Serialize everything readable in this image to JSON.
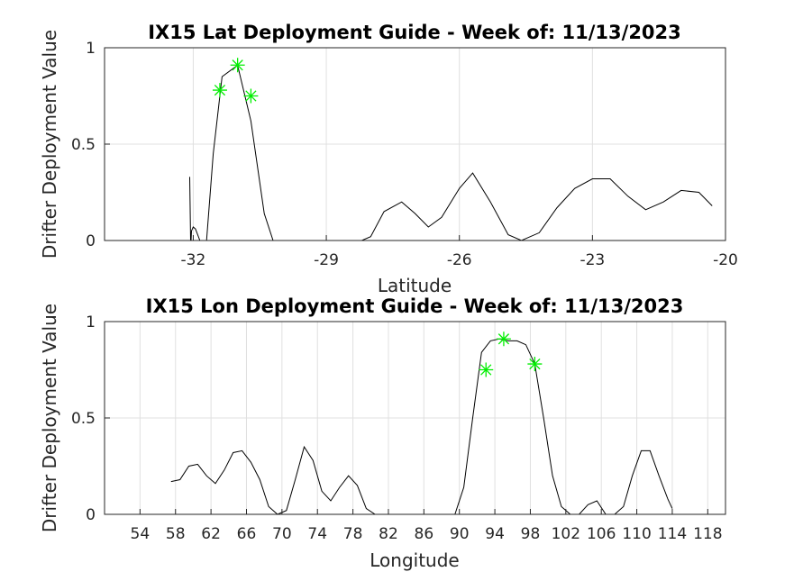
{
  "chart_data": [
    {
      "type": "line",
      "title": "IX15 Lat Deployment Guide - Week of: 11/13/2023",
      "xlabel": "Latitude",
      "ylabel": "Drifter Deployment Value",
      "xlim": [
        -34,
        -20
      ],
      "ylim": [
        0,
        1
      ],
      "xticks": [
        -32,
        -29,
        -26,
        -23,
        -20
      ],
      "yticks": [
        0,
        0.5,
        1
      ],
      "xtick_labels": [
        "-32",
        "-29",
        "-26",
        "-23",
        "-20"
      ],
      "ytick_labels": [
        "0",
        "0.5",
        "1"
      ],
      "grid": true,
      "series": [
        {
          "color": "#000000",
          "x": [
            -32.08,
            -32.06,
            -32.05,
            -32.04,
            -32.0,
            -31.95,
            -31.85,
            -31.7,
            -31.55,
            -31.35,
            -31.0,
            -30.7,
            -30.4,
            -30.2,
            -29.8,
            -29.0,
            -28.2,
            -28.0,
            -27.7,
            -27.3,
            -27.0,
            -26.7,
            -26.4,
            -26.0,
            -25.7,
            -25.3,
            -24.9,
            -24.6,
            -24.2,
            -23.8,
            -23.4,
            -23.0,
            -22.6,
            -22.2,
            -21.8,
            -21.4,
            -21.0,
            -20.6,
            -20.3
          ],
          "y": [
            0.33,
            0.0,
            0.0,
            0.05,
            0.07,
            0.06,
            0.0,
            0.0,
            0.45,
            0.85,
            0.91,
            0.62,
            0.14,
            0.0,
            0.0,
            0.0,
            0.0,
            0.02,
            0.15,
            0.2,
            0.14,
            0.07,
            0.12,
            0.27,
            0.35,
            0.2,
            0.03,
            0.0,
            0.04,
            0.17,
            0.27,
            0.32,
            0.32,
            0.23,
            0.16,
            0.2,
            0.26,
            0.25,
            0.18
          ]
        }
      ],
      "markers": {
        "color": "#00ee00",
        "symbol": "asterisk",
        "points": [
          {
            "x": -31.4,
            "y": 0.78
          },
          {
            "x": -31.0,
            "y": 0.91
          },
          {
            "x": -30.7,
            "y": 0.75
          }
        ]
      }
    },
    {
      "type": "line",
      "title": "IX15 Lon Deployment Guide - Week of: 11/13/2023",
      "xlabel": "Longitude",
      "ylabel": "Drifter Deployment Value",
      "xlim": [
        50,
        120
      ],
      "ylim": [
        0,
        1
      ],
      "xticks": [
        54,
        58,
        62,
        66,
        70,
        74,
        78,
        82,
        86,
        90,
        94,
        98,
        102,
        106,
        110,
        114,
        118
      ],
      "yticks": [
        0,
        0.5,
        1
      ],
      "xtick_labels": [
        "54",
        "58",
        "62",
        "66",
        "70",
        "74",
        "78",
        "82",
        "86",
        "90",
        "94",
        "98",
        "102",
        "106",
        "110",
        "114",
        "118"
      ],
      "ytick_labels": [
        "0",
        "0.5",
        "1"
      ],
      "grid": true,
      "series": [
        {
          "color": "#000000",
          "x": [
            57.5,
            58.5,
            59.5,
            60.5,
            61.5,
            62.5,
            63.5,
            64.5,
            65.5,
            66.5,
            67.5,
            68.5,
            69.5,
            70.5,
            71.5,
            72.5,
            73.5,
            74.5,
            75.5,
            76.5,
            77.5,
            78.5,
            79.5,
            80.5,
            89.5,
            90.5,
            91.5,
            92.5,
            93.5,
            94.5,
            95.5,
            96.5,
            97.5,
            98.5,
            99.5,
            100.5,
            101.5,
            102.5,
            103.5,
            104.5,
            105.5,
            106.5,
            107.5,
            108.5,
            109.5,
            110.5,
            111.5,
            112.5,
            113.5,
            114.0
          ],
          "y": [
            0.17,
            0.18,
            0.25,
            0.26,
            0.2,
            0.16,
            0.23,
            0.32,
            0.33,
            0.27,
            0.18,
            0.04,
            0.0,
            0.02,
            0.18,
            0.35,
            0.28,
            0.12,
            0.07,
            0.14,
            0.2,
            0.15,
            0.03,
            0.0,
            0.0,
            0.14,
            0.5,
            0.84,
            0.9,
            0.91,
            0.9,
            0.9,
            0.88,
            0.78,
            0.5,
            0.2,
            0.04,
            0.0,
            0.0,
            0.05,
            0.07,
            0.0,
            0.0,
            0.04,
            0.2,
            0.33,
            0.33,
            0.2,
            0.08,
            0.03
          ]
        }
      ],
      "markers": {
        "color": "#00ee00",
        "symbol": "asterisk",
        "points": [
          {
            "x": 93.0,
            "y": 0.75
          },
          {
            "x": 95.0,
            "y": 0.91
          },
          {
            "x": 98.5,
            "y": 0.78
          }
        ]
      }
    }
  ]
}
